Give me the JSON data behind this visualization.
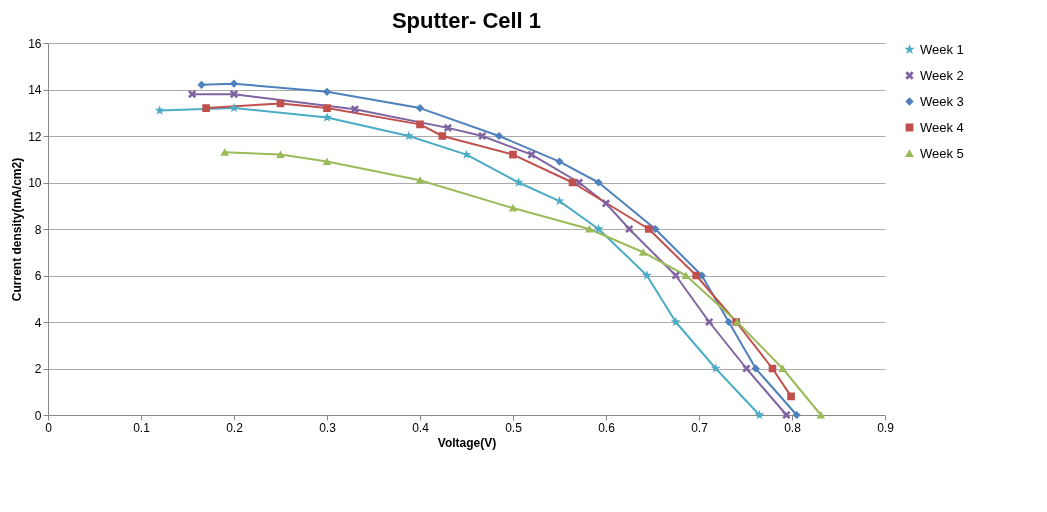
{
  "chart_data": {
    "type": "line",
    "title": "Sputter- Cell 1",
    "xlabel": "Voltage(V)",
    "ylabel": "Current density(mA/cm2)",
    "xlim": [
      0,
      0.9
    ],
    "xticks": [
      0,
      0.1,
      0.2,
      0.3,
      0.4,
      0.5,
      0.6,
      0.7,
      0.8,
      0.9
    ],
    "ylim": [
      0,
      16
    ],
    "yticks": [
      0,
      2,
      4,
      6,
      8,
      10,
      12,
      14,
      16
    ],
    "grid": "y",
    "legend": "right",
    "series": [
      {
        "name": "Week 1",
        "color": "#4bacc6",
        "marker": "star",
        "x": [
          0.12,
          0.2,
          0.3,
          0.388,
          0.45,
          0.506,
          0.55,
          0.592,
          0.644,
          0.675,
          0.718,
          0.765
        ],
        "values": [
          13.1,
          13.2,
          12.8,
          12,
          11.2,
          10,
          9.2,
          8,
          6,
          4,
          2,
          0
        ]
      },
      {
        "name": "Week 2",
        "color": "#8064a2",
        "marker": "cross",
        "x": [
          0.155,
          0.2,
          0.33,
          0.43,
          0.467,
          0.52,
          0.571,
          0.6,
          0.625,
          0.675,
          0.711,
          0.751,
          0.794
        ],
        "values": [
          13.8,
          13.8,
          13.15,
          12.35,
          12,
          11.2,
          10,
          9.1,
          8,
          6,
          4,
          2,
          0
        ]
      },
      {
        "name": "Week 3",
        "color": "#4f81bd",
        "marker": "diamond",
        "x": [
          0.165,
          0.2,
          0.3,
          0.4,
          0.485,
          0.55,
          0.592,
          0.653,
          0.703,
          0.732,
          0.761,
          0.805
        ],
        "values": [
          14.2,
          14.25,
          13.9,
          13.2,
          12,
          10.9,
          10,
          8,
          6,
          4,
          2,
          0
        ]
      },
      {
        "name": "Week 4",
        "color": "#c0504d",
        "marker": "square",
        "x": [
          0.17,
          0.25,
          0.3,
          0.4,
          0.424,
          0.5,
          0.564,
          0.646,
          0.697,
          0.74,
          0.779,
          0.799
        ],
        "values": [
          13.2,
          13.4,
          13.2,
          12.5,
          12,
          11.2,
          10,
          8,
          6,
          4,
          2,
          0.8
        ]
      },
      {
        "name": "Week 5",
        "color": "#9bbb59",
        "marker": "triangle",
        "x": [
          0.19,
          0.25,
          0.3,
          0.4,
          0.5,
          0.582,
          0.64,
          0.686,
          0.741,
          0.79,
          0.831
        ],
        "values": [
          11.3,
          11.2,
          10.9,
          10.1,
          8.9,
          8,
          7,
          6,
          4,
          2,
          0
        ]
      }
    ]
  }
}
